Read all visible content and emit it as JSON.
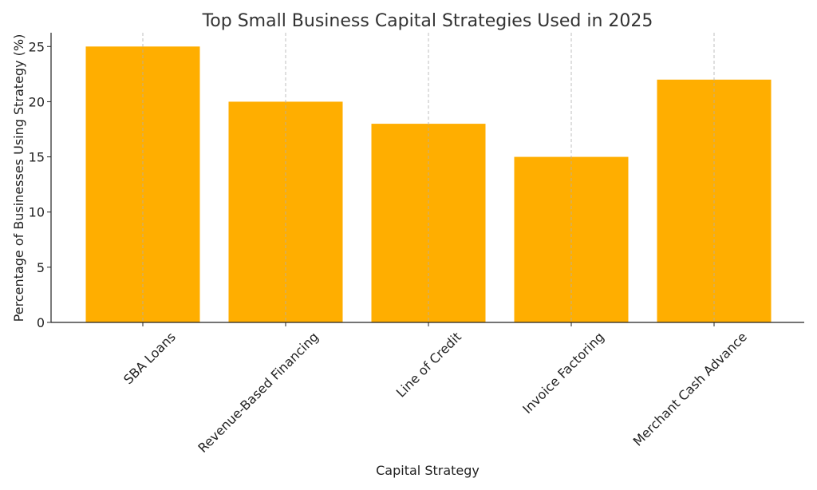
{
  "chart_data": {
    "type": "bar",
    "title": "Top Small Business Capital Strategies Used in 2025",
    "xlabel": "Capital Strategy",
    "ylabel": "Percentage of Businesses Using Strategy (%)",
    "categories": [
      "SBA Loans",
      "Revenue-Based Financing",
      "Line of Credit",
      "Invoice Factoring",
      "Merchant Cash Advance"
    ],
    "values": [
      25,
      20,
      18,
      15,
      22
    ],
    "ylim": [
      0,
      26.25
    ],
    "yticks": [
      0,
      5,
      10,
      15,
      20,
      25
    ],
    "grid": "vertical dashed",
    "bar_color": "#FFAE00"
  }
}
